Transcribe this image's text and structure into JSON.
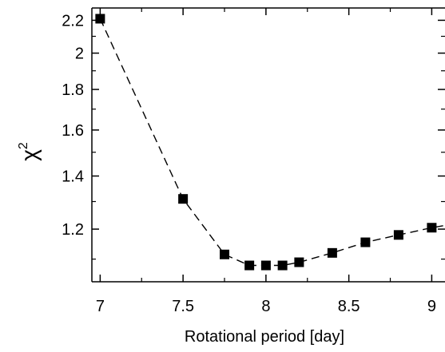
{
  "chart_data": {
    "type": "line",
    "title": "",
    "xlabel": "Rotational period [day]",
    "ylabel": "χ",
    "ylabel_superscript": "2",
    "y_scale": "log",
    "xlim": [
      6.95,
      9.08
    ],
    "ylim": [
      1.03,
      2.28
    ],
    "x_ticks": [
      7,
      7.5,
      8,
      8.5,
      9
    ],
    "x_tick_labels": [
      "7",
      "7.5",
      "8",
      "8.5",
      "9"
    ],
    "y_ticks": [
      1.2,
      1.4,
      1.6,
      1.8,
      2,
      2.2
    ],
    "y_tick_labels": [
      "1.2",
      "1.4",
      "1.6",
      "1.8",
      "2",
      "2.2"
    ],
    "grid": false,
    "legend": "none",
    "line_style": "dashed",
    "marker": "square",
    "color": "#000000",
    "series": [
      {
        "x": [
          7.0,
          7.5,
          7.75,
          7.9,
          8.0,
          8.1,
          8.2,
          8.4,
          8.6,
          8.8,
          9.0,
          9.1
        ],
        "y": [
          2.21,
          1.31,
          1.115,
          1.08,
          1.08,
          1.08,
          1.09,
          1.12,
          1.155,
          1.18,
          1.205,
          1.215
        ]
      }
    ]
  }
}
